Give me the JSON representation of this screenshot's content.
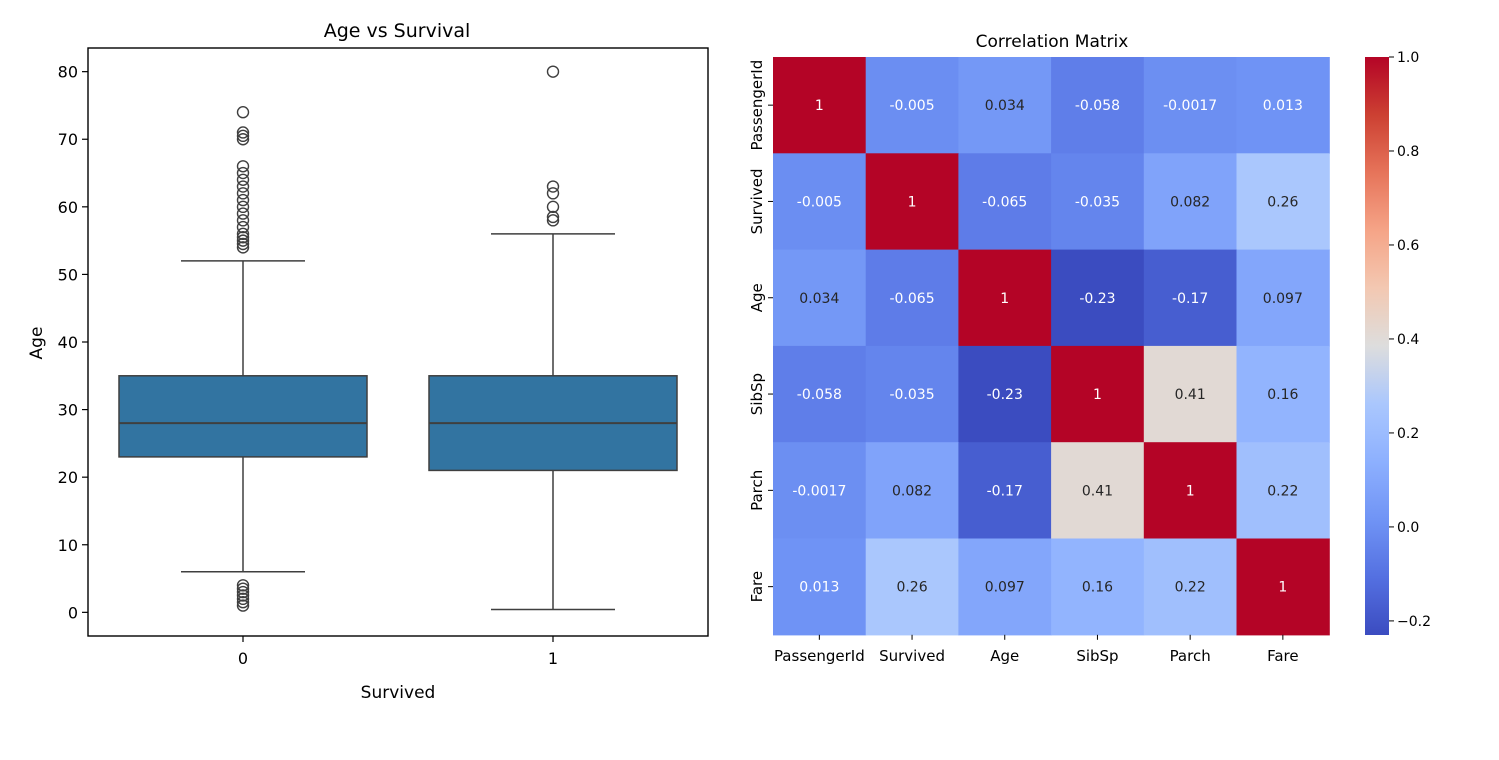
{
  "chart_data": [
    {
      "type": "box",
      "title": "Age vs Survival",
      "xlabel": "Survived",
      "ylabel": "Age",
      "ylim": [
        -3.5,
        83.5
      ],
      "yticks": [
        0,
        10,
        20,
        30,
        40,
        50,
        60,
        70,
        80
      ],
      "categories": [
        "0",
        "1"
      ],
      "box_color": "#3274a1",
      "boxes": [
        {
          "category": "0",
          "whisker_low": 6,
          "q1": 23,
          "median": 28,
          "q3": 35,
          "whisker_high": 52,
          "outliers": [
            1,
            1.5,
            2,
            2.5,
            3,
            3.5,
            4,
            54,
            54.5,
            55,
            55.5,
            56,
            57,
            58,
            59,
            60,
            61,
            62,
            63,
            64,
            65,
            66,
            70,
            70.5,
            71,
            74
          ]
        },
        {
          "category": "1",
          "whisker_low": 0.42,
          "q1": 21,
          "median": 28,
          "q3": 35,
          "whisker_high": 56,
          "outliers": [
            58,
            58.5,
            60,
            62,
            63,
            80
          ]
        }
      ]
    },
    {
      "type": "heatmap",
      "title": "Correlation Matrix",
      "colormap": "coolwarm",
      "vmin": -0.23,
      "vmax": 1.0,
      "labels": [
        "PassengerId",
        "Survived",
        "Age",
        "SibSp",
        "Parch",
        "Fare"
      ],
      "matrix": [
        [
          1,
          -0.005,
          0.034,
          -0.058,
          -0.0017,
          0.013
        ],
        [
          -0.005,
          1,
          -0.065,
          -0.035,
          0.082,
          0.26
        ],
        [
          0.034,
          -0.065,
          1,
          -0.23,
          -0.17,
          0.097
        ],
        [
          -0.058,
          -0.035,
          -0.23,
          1,
          0.41,
          0.16
        ],
        [
          -0.0017,
          0.082,
          -0.17,
          0.41,
          1,
          0.22
        ],
        [
          0.013,
          0.26,
          0.097,
          0.16,
          0.22,
          1
        ]
      ],
      "annotations": [
        [
          "1",
          "-0.005",
          "0.034",
          "-0.058",
          "-0.0017",
          "0.013"
        ],
        [
          "-0.005",
          "1",
          "-0.065",
          "-0.035",
          "0.082",
          "0.26"
        ],
        [
          "0.034",
          "-0.065",
          "1",
          "-0.23",
          "-0.17",
          "0.097"
        ],
        [
          "-0.058",
          "-0.035",
          "-0.23",
          "1",
          "0.41",
          "0.16"
        ],
        [
          "-0.0017",
          "0.082",
          "-0.17",
          "0.41",
          "1",
          "0.22"
        ],
        [
          "0.013",
          "0.26",
          "0.097",
          "0.16",
          "0.22",
          "1"
        ]
      ],
      "colorbar_ticks": [
        -0.2,
        0.0,
        0.2,
        0.4,
        0.6,
        0.8,
        1.0
      ],
      "colorbar_tick_labels": [
        "−0.2",
        "0.0",
        "0.2",
        "0.4",
        "0.6",
        "0.8",
        "1.0"
      ]
    }
  ]
}
